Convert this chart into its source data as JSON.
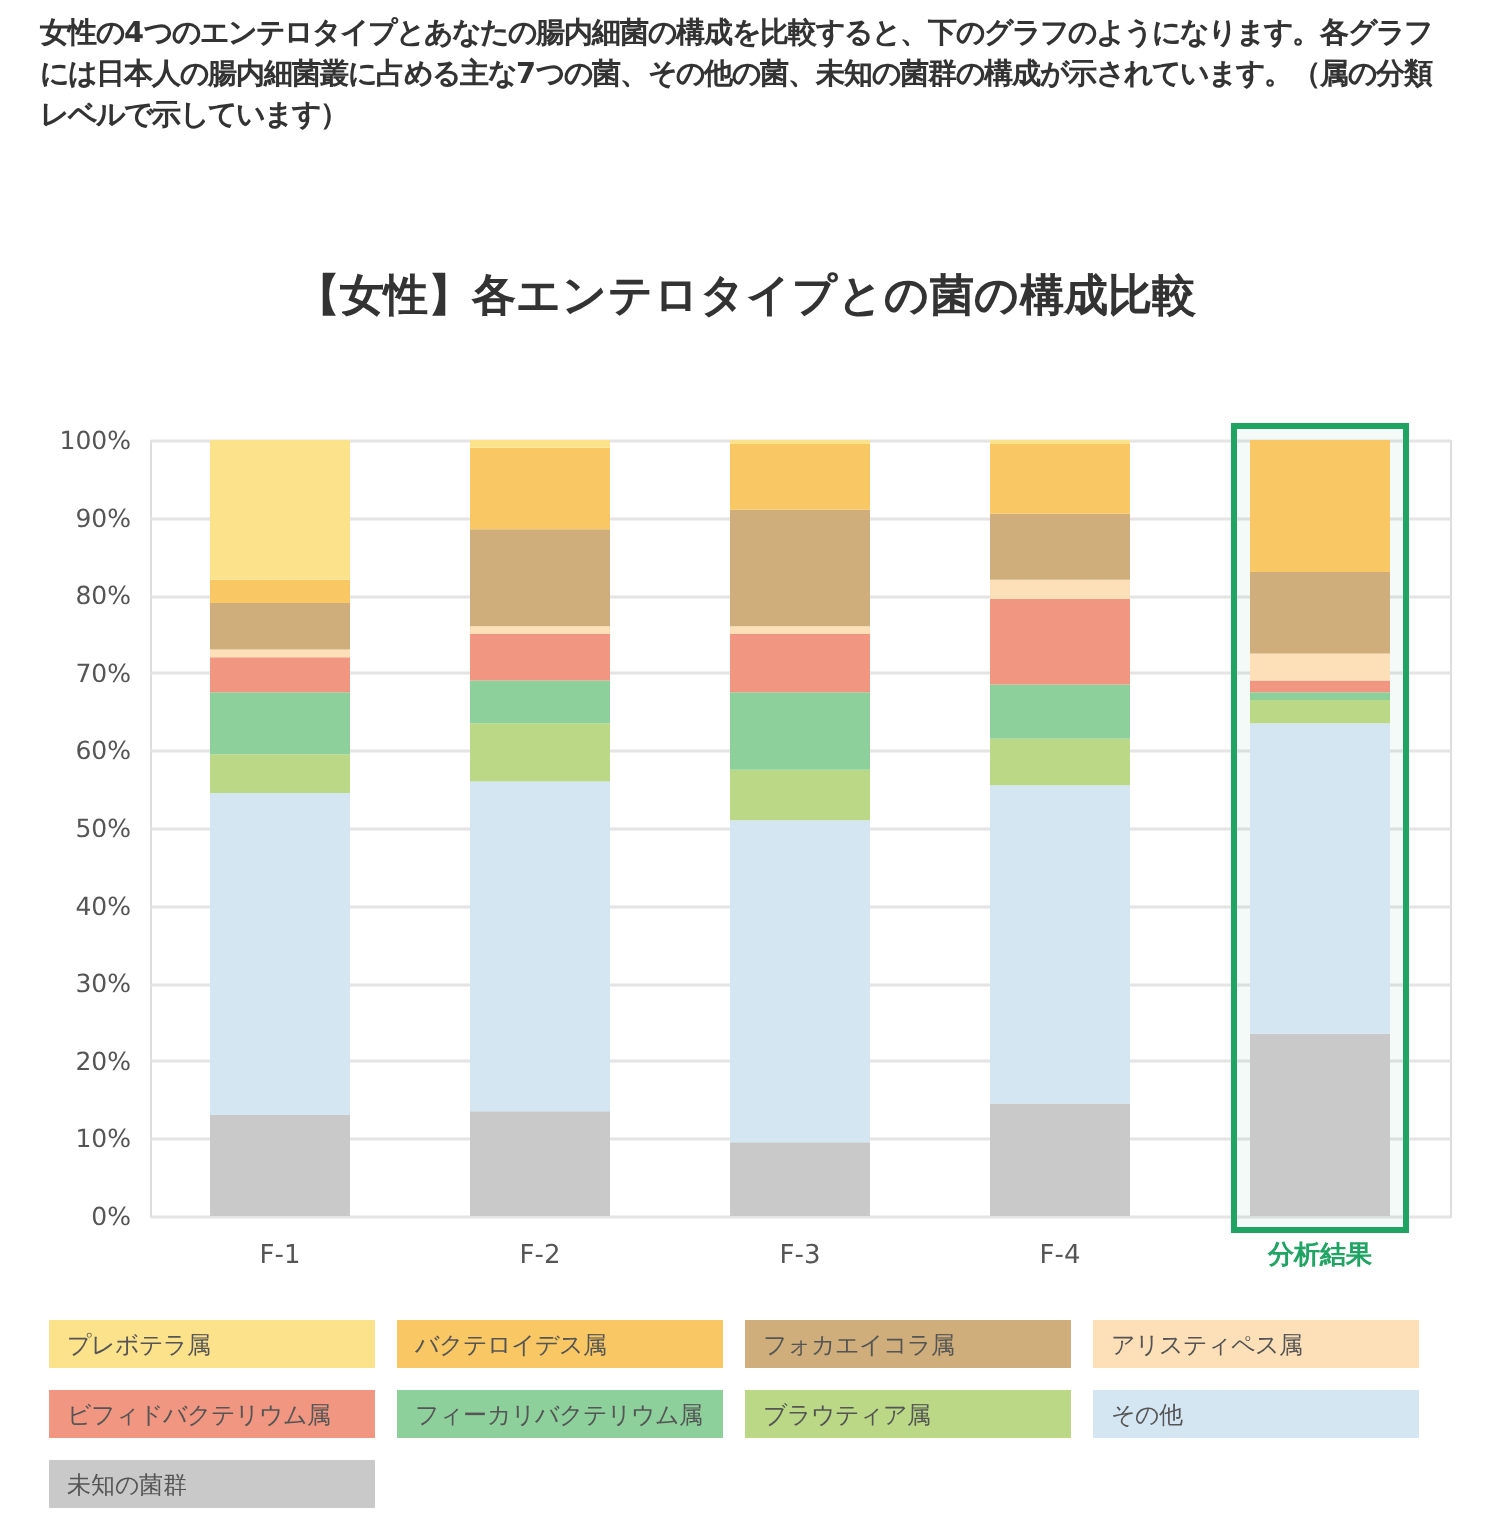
{
  "chart_data": {
    "type": "bar",
    "title": "【女性】各エンテロタイプとの菌の構成比較",
    "annotations": [
      "女性の4つのエンテロタイプとあなたの腸内細菌の構成を比較すると、下のグラフのようになります。各グラフには日本人の腸内細菌叢に占める主な7つの菌、その他の菌、未知の菌群の構成が示されています。（属の分類レベルで示しています）"
    ],
    "categories": [
      "F-1",
      "F-2",
      "F-3",
      "F-4",
      "分析結果"
    ],
    "stacked": true,
    "series": [
      {
        "name": "未知の菌群",
        "color": "#c9c9c9",
        "values": [
          13,
          13.5,
          9.5,
          14.5,
          23.5
        ]
      },
      {
        "name": "その他",
        "color": "#d4e6f2",
        "values": [
          41.5,
          42.5,
          41.5,
          41,
          40
        ]
      },
      {
        "name": "ブラウティア属",
        "color": "#bad886",
        "values": [
          5,
          7.5,
          6.5,
          6,
          3
        ]
      },
      {
        "name": "フィーカリバクテリウム属",
        "color": "#8dd09c",
        "values": [
          8,
          5.5,
          10,
          7,
          1
        ]
      },
      {
        "name": "ビフィドバクテリウム属",
        "color": "#f09681",
        "values": [
          4.5,
          6,
          7.5,
          11,
          1.5
        ]
      },
      {
        "name": "アリスティペス属",
        "color": "#fde0b8",
        "values": [
          1,
          1,
          1,
          2.5,
          3.5
        ]
      },
      {
        "name": "フォカエイコラ属",
        "color": "#cfae7c",
        "values": [
          6,
          12.5,
          15,
          8.5,
          10.5
        ]
      },
      {
        "name": "バクテロイデス属",
        "color": "#f9c864",
        "values": [
          3,
          10.5,
          8.5,
          9,
          17
        ]
      },
      {
        "name": "プレボテラ属",
        "color": "#fde28c",
        "values": [
          18,
          1,
          0.5,
          0.5,
          null
        ]
      }
    ],
    "ylim": [
      0,
      100
    ],
    "yticks": [
      {
        "value": 0,
        "label": "0%"
      },
      {
        "value": 10,
        "label": "10%"
      },
      {
        "value": 20,
        "label": "20%"
      },
      {
        "value": 30,
        "label": "30%"
      },
      {
        "value": 40,
        "label": "40%"
      },
      {
        "value": 50,
        "label": "50%"
      },
      {
        "value": 60,
        "label": "60%"
      },
      {
        "value": 70,
        "label": "70%"
      },
      {
        "value": 80,
        "label": "80%"
      },
      {
        "value": 90,
        "label": "90%"
      },
      {
        "value": 100,
        "label": "100%"
      }
    ],
    "grid": "y",
    "legend": "bottom",
    "bands": [
      {
        "axis": "x",
        "from": "分析結果",
        "to": "分析結果",
        "color": "#1fa463"
      }
    ]
  }
}
